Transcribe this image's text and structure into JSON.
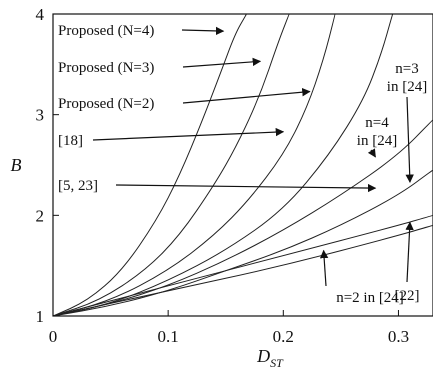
{
  "chart_data": {
    "type": "line",
    "title": "",
    "xlabel": "D",
    "xlabel_subscript": "ST",
    "ylabel": "B",
    "xlim": [
      0,
      0.33
    ],
    "ylim": [
      1,
      4
    ],
    "xticks": [
      0,
      0.1,
      0.2,
      0.3
    ],
    "xtick_labels": [
      "0",
      "0.1",
      "0.2",
      "0.3"
    ],
    "yticks": [
      1,
      2,
      3,
      4
    ],
    "ytick_labels": [
      "1",
      "2",
      "3",
      "4"
    ],
    "grid": false,
    "legend": "none",
    "line_color": "#222222",
    "series": [
      {
        "x": [
          0,
          0.03,
          0.06,
          0.09,
          0.11,
          0.13,
          0.145,
          0.158,
          0.168
        ],
        "y": [
          1,
          1.15,
          1.45,
          1.95,
          2.4,
          2.95,
          3.4,
          3.8,
          4.0
        ]
      },
      {
        "x": [
          0,
          0.04,
          0.08,
          0.11,
          0.14,
          0.16,
          0.18,
          0.195,
          0.205
        ],
        "y": [
          1,
          1.15,
          1.45,
          1.8,
          2.3,
          2.7,
          3.2,
          3.7,
          4.0
        ]
      },
      {
        "x": [
          0,
          0.05,
          0.1,
          0.14,
          0.17,
          0.2,
          0.22,
          0.235,
          0.245
        ],
        "y": [
          1,
          1.15,
          1.45,
          1.8,
          2.15,
          2.6,
          3.05,
          3.55,
          4.0
        ]
      },
      {
        "x": [
          0,
          0.05,
          0.1,
          0.15,
          0.2,
          0.24,
          0.27,
          0.285,
          0.295
        ],
        "y": [
          1,
          1.12,
          1.35,
          1.65,
          2.05,
          2.6,
          3.15,
          3.6,
          4.0
        ]
      },
      {
        "x": [
          0,
          0.05,
          0.1,
          0.15,
          0.2,
          0.25,
          0.3,
          0.33
        ],
        "y": [
          1,
          1.12,
          1.3,
          1.55,
          1.85,
          2.2,
          2.6,
          2.95
        ]
      },
      {
        "x": [
          0,
          0.05,
          0.1,
          0.15,
          0.2,
          0.25,
          0.3,
          0.33
        ],
        "y": [
          1,
          1.1,
          1.25,
          1.45,
          1.65,
          1.9,
          2.2,
          2.45
        ]
      },
      {
        "x": [
          0,
          0.1,
          0.2,
          0.3,
          0.33
        ],
        "y": [
          1,
          1.3,
          1.6,
          1.9,
          2.0
        ]
      },
      {
        "x": [
          0,
          0.1,
          0.2,
          0.3,
          0.33
        ],
        "y": [
          1,
          1.25,
          1.5,
          1.8,
          1.9
        ]
      }
    ],
    "annotations": [
      {
        "text": "Proposed (N=4)",
        "target": [
          0.148,
          3.83
        ]
      },
      {
        "text": "Proposed (N=3)",
        "target": [
          0.18,
          3.53
        ]
      },
      {
        "text": "Proposed (N=2)",
        "target": [
          0.223,
          3.23
        ]
      },
      {
        "text": "[18]",
        "target": [
          0.2,
          2.83
        ]
      },
      {
        "text": "[5, 23]",
        "target": [
          0.28,
          2.27
        ]
      },
      {
        "text": "n=4",
        "text2": "in [24]",
        "target": [
          0.28,
          2.58
        ]
      },
      {
        "text": "n=3",
        "text2": "in [24]",
        "target": [
          0.31,
          2.33
        ]
      },
      {
        "text": "n=2 in [24]",
        "target": [
          0.235,
          1.65
        ]
      },
      {
        "text": "[22]",
        "target": [
          0.31,
          1.93
        ]
      }
    ]
  }
}
